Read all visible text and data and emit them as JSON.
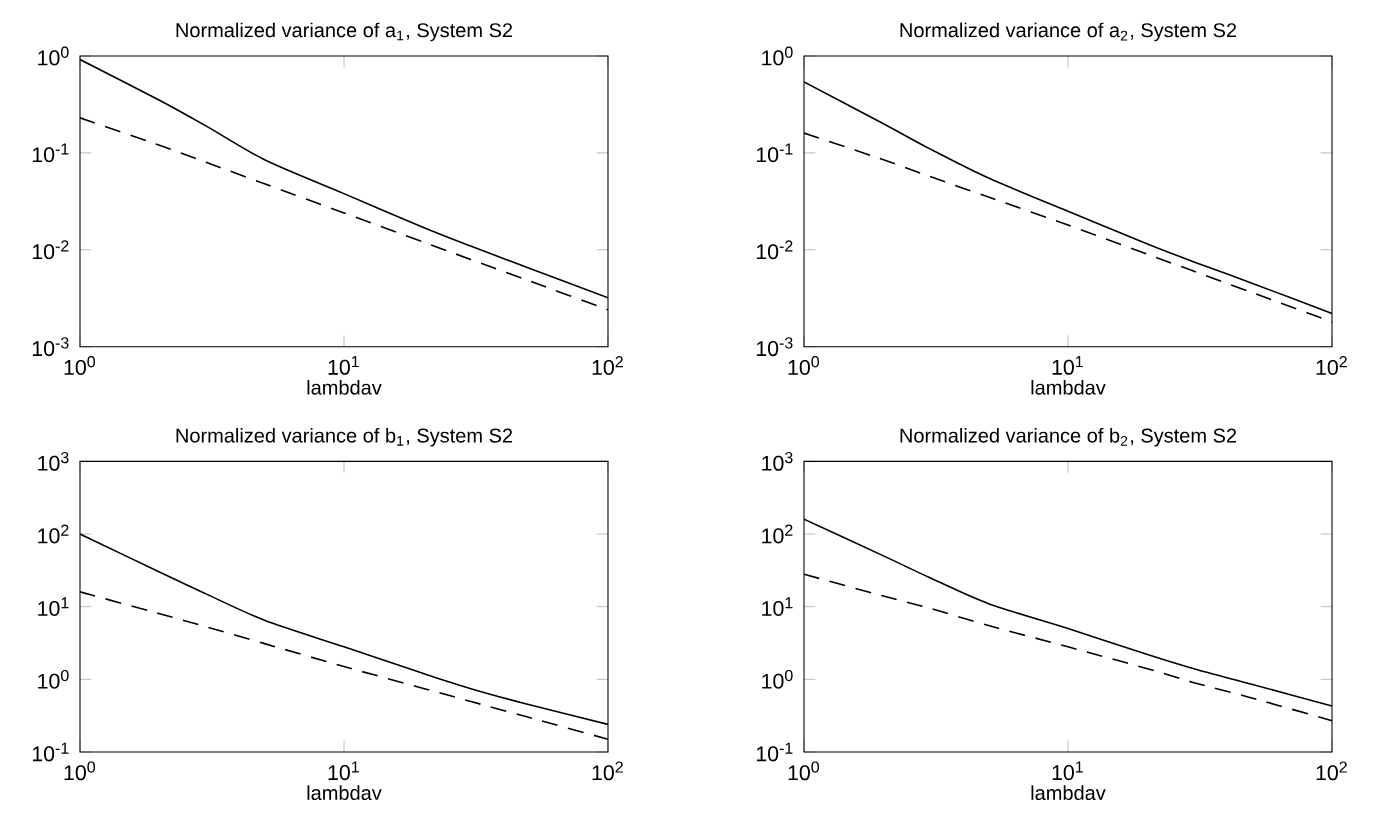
{
  "chart_data": [
    {
      "type": "line",
      "title": "Normalized variance of a$_{1}$, System S2",
      "xlabel": "lambdav",
      "log": "xy",
      "xlim": [
        1,
        100
      ],
      "ylim": [
        0.001,
        1
      ],
      "xticks": [
        {
          "value": 1,
          "label": "10$^{0}$"
        },
        {
          "value": 10,
          "label": "10$^{1}$"
        },
        {
          "value": 100,
          "label": "10$^{2}$"
        }
      ],
      "yticks": [
        {
          "value": 0.001,
          "label": "10$^{-3}$"
        },
        {
          "value": 0.01,
          "label": "10$^{-2}$"
        },
        {
          "value": 0.1,
          "label": "10$^{-1}$"
        },
        {
          "value": 1,
          "label": "10$^{0}$"
        }
      ],
      "x": [
        1,
        2,
        3,
        5,
        10,
        20,
        30,
        50,
        100
      ],
      "series": [
        {
          "color": "#000000",
          "line_style": "solid",
          "values": [
            0.92,
            0.35,
            0.19,
            0.085,
            0.038,
            0.017,
            0.011,
            0.0065,
            0.0032
          ]
        },
        {
          "color": "#000000",
          "line_style": "dashed",
          "values": [
            0.23,
            0.12,
            0.08,
            0.048,
            0.024,
            0.012,
            0.008,
            0.0048,
            0.0024
          ]
        }
      ]
    },
    {
      "type": "line",
      "title": "Normalized variance of a$_{2}$, System S2",
      "xlabel": "lambdav",
      "log": "xy",
      "xlim": [
        1,
        100
      ],
      "ylim": [
        0.001,
        1
      ],
      "xticks": [
        {
          "value": 1,
          "label": "10$^{0}$"
        },
        {
          "value": 10,
          "label": "10$^{1}$"
        },
        {
          "value": 100,
          "label": "10$^{2}$"
        }
      ],
      "yticks": [
        {
          "value": 0.001,
          "label": "10$^{-3}$"
        },
        {
          "value": 0.01,
          "label": "10$^{-2}$"
        },
        {
          "value": 0.1,
          "label": "10$^{-1}$"
        },
        {
          "value": 1,
          "label": "10$^{0}$"
        }
      ],
      "x": [
        1,
        2,
        3,
        5,
        10,
        20,
        30,
        50,
        100
      ],
      "series": [
        {
          "color": "#000000",
          "line_style": "solid",
          "values": [
            0.54,
            0.2,
            0.11,
            0.055,
            0.025,
            0.0115,
            0.0075,
            0.0045,
            0.0022
          ]
        },
        {
          "color": "#000000",
          "line_style": "dashed",
          "values": [
            0.16,
            0.085,
            0.057,
            0.035,
            0.018,
            0.009,
            0.006,
            0.0036,
            0.0018
          ]
        }
      ]
    },
    {
      "type": "line",
      "title": "Normalized variance of b$_{1}$, System S2",
      "xlabel": "lambdav",
      "log": "xy",
      "xlim": [
        1,
        100
      ],
      "ylim": [
        0.1,
        1000
      ],
      "xticks": [
        {
          "value": 1,
          "label": "10$^{0}$"
        },
        {
          "value": 10,
          "label": "10$^{1}$"
        },
        {
          "value": 100,
          "label": "10$^{2}$"
        }
      ],
      "yticks": [
        {
          "value": 0.1,
          "label": "10$^{-1}$"
        },
        {
          "value": 1,
          "label": "10$^{0}$"
        },
        {
          "value": 10,
          "label": "10$^{1}$"
        },
        {
          "value": 100,
          "label": "10$^{2}$"
        },
        {
          "value": 1000,
          "label": "10$^{3}$"
        }
      ],
      "x": [
        1,
        2,
        3,
        5,
        10,
        20,
        30,
        50,
        100
      ],
      "series": [
        {
          "color": "#000000",
          "line_style": "solid",
          "values": [
            100,
            30,
            15,
            6.5,
            2.8,
            1.2,
            0.75,
            0.45,
            0.24
          ]
        },
        {
          "color": "#000000",
          "line_style": "dashed",
          "values": [
            16,
            8,
            5.3,
            3.1,
            1.5,
            0.75,
            0.5,
            0.3,
            0.15
          ]
        }
      ]
    },
    {
      "type": "line",
      "title": "Normalized variance of b$_{2}$, System S2",
      "xlabel": "lambdav",
      "log": "xy",
      "xlim": [
        1,
        100
      ],
      "ylim": [
        0.1,
        1000
      ],
      "xticks": [
        {
          "value": 1,
          "label": "10$^{0}$"
        },
        {
          "value": 10,
          "label": "10$^{1}$"
        },
        {
          "value": 100,
          "label": "10$^{2}$"
        }
      ],
      "yticks": [
        {
          "value": 0.1,
          "label": "10$^{-1}$"
        },
        {
          "value": 1,
          "label": "10$^{0}$"
        },
        {
          "value": 10,
          "label": "10$^{1}$"
        },
        {
          "value": 100,
          "label": "10$^{2}$"
        },
        {
          "value": 1000,
          "label": "10$^{3}$"
        }
      ],
      "x": [
        1,
        2,
        3,
        5,
        10,
        20,
        30,
        50,
        100
      ],
      "series": [
        {
          "color": "#000000",
          "line_style": "solid",
          "values": [
            160,
            50,
            25,
            11,
            5,
            2.2,
            1.4,
            0.85,
            0.43
          ]
        },
        {
          "color": "#000000",
          "line_style": "dashed",
          "values": [
            28,
            14,
            9.5,
            5.5,
            2.8,
            1.4,
            0.9,
            0.55,
            0.27
          ]
        }
      ]
    }
  ]
}
